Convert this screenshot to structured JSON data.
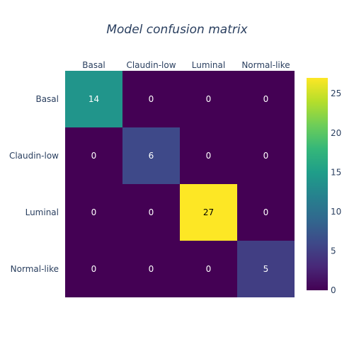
{
  "chart_data": {
    "type": "heatmap",
    "title": "Model confusion matrix",
    "x_categories": [
      "Basal",
      "Claudin-low",
      "Luminal",
      "Normal-like"
    ],
    "y_categories": [
      "Basal",
      "Claudin-low",
      "Luminal",
      "Normal-like"
    ],
    "z": [
      [
        14,
        0,
        0,
        0
      ],
      [
        0,
        6,
        0,
        0
      ],
      [
        0,
        0,
        27,
        0
      ],
      [
        0,
        0,
        0,
        5
      ]
    ],
    "zmin": 0,
    "zmax": 27,
    "colorscale": "viridis",
    "colorbar_ticks": [
      "0",
      "5",
      "10",
      "15",
      "20",
      "25"
    ],
    "colorbar_tick_values": [
      0,
      5,
      10,
      15,
      20,
      25
    ],
    "x_axis_side": "top",
    "grid": false
  }
}
